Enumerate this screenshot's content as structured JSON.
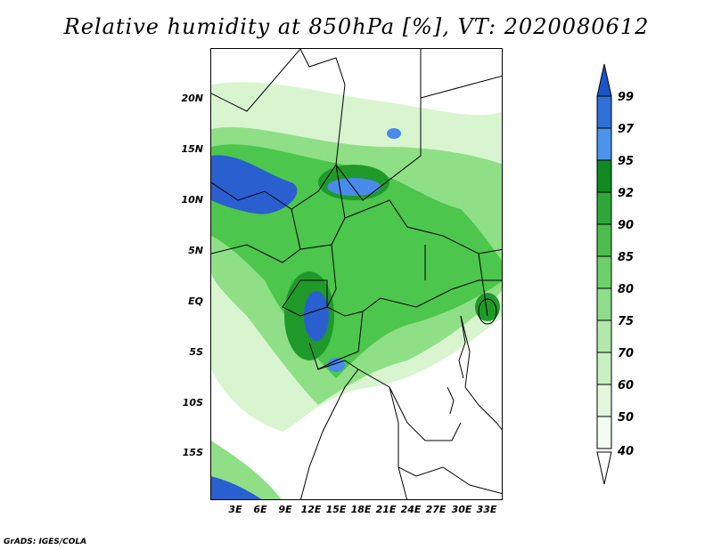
{
  "title": "Relative humidity at 850hPa [%], VT: 2020080612",
  "footer": "GrADS: IGES/COLA",
  "map": {
    "lat_ticks": [
      "20N",
      "15N",
      "10N",
      "5N",
      "EQ",
      "5S",
      "10S",
      "15S"
    ],
    "lon_ticks": [
      "3E",
      "6E",
      "9E",
      "12E",
      "15E",
      "18E",
      "21E",
      "24E",
      "27E",
      "30E",
      "33E"
    ],
    "colors": {
      "land_bg": "#ffffff",
      "light_green": "#d8f5d0",
      "mid_green": "#8fdf86",
      "green": "#4cc64c",
      "dark_green": "#1f9a2a",
      "light_blue": "#4a8ae8",
      "blue": "#2a5fd0",
      "border": "#000000"
    }
  },
  "colorbar": {
    "levels": [
      "99",
      "97",
      "95",
      "92",
      "90",
      "85",
      "80",
      "75",
      "70",
      "60",
      "50",
      "40"
    ],
    "colors": [
      "#1a56c8",
      "#2f6fd8",
      "#4c93ec",
      "#0f8a22",
      "#2ea83a",
      "#4dbe4d",
      "#6ccf6a",
      "#8fdc8a",
      "#b2e8aa",
      "#c9f0c2",
      "#e2f7dc",
      "#f3fcf1"
    ]
  }
}
